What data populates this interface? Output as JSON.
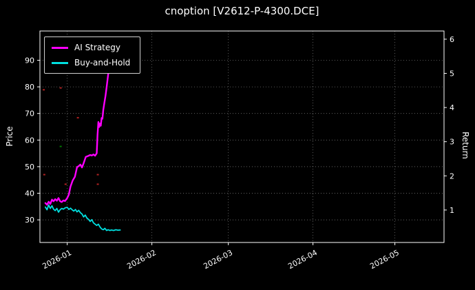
{
  "title": "cnoption [V2612-P-4300.DCE]",
  "chart_data": {
    "type": "line",
    "title": "cnoption [V2612-P-4300.DCE]",
    "x_axis": {
      "range_days": [
        0,
        148
      ],
      "tick_days": [
        10,
        41,
        69,
        100,
        130
      ],
      "tick_labels": [
        "2026-01",
        "2026-02",
        "2026-03",
        "2026-04",
        "2026-05"
      ]
    },
    "y_left": {
      "label": "Price",
      "ticks": [
        30,
        40,
        50,
        60,
        70,
        80,
        90
      ],
      "range": [
        21.5,
        101
      ]
    },
    "y_right": {
      "label": "Return",
      "ticks": [
        1,
        2,
        3,
        4,
        5,
        6
      ],
      "range": [
        0.05,
        6.24
      ]
    },
    "legend": [
      {
        "name": "AI Strategy",
        "color": "#ff00ff"
      },
      {
        "name": "Buy-and-Hold",
        "color": "#00e0e0"
      }
    ],
    "grid": {
      "color": "rgba(255,255,255,0.45)",
      "dash": "1 3"
    },
    "colors": {
      "background": "#000000",
      "text": "#ffffff",
      "spine": "#ffffff"
    },
    "series": [
      {
        "name": "AI Strategy",
        "color": "#ff00ff",
        "width": 2.4,
        "points": [
          [
            2,
            36.3
          ],
          [
            2.6,
            35.7
          ],
          [
            3.2,
            36.8
          ],
          [
            3.8,
            36.0
          ],
          [
            4.4,
            37.6
          ],
          [
            5,
            37.0
          ],
          [
            5.6,
            37.8
          ],
          [
            6.2,
            37.2
          ],
          [
            6.8,
            38.2
          ],
          [
            7.4,
            37.0
          ],
          [
            8,
            36.7
          ],
          [
            8.6,
            37.3
          ],
          [
            9.2,
            37.1
          ],
          [
            10,
            38.2
          ],
          [
            10.6,
            39.5
          ],
          [
            11.2,
            42.5
          ],
          [
            12,
            44.8
          ],
          [
            12.8,
            46.2
          ],
          [
            13.6,
            49.8
          ],
          [
            14.2,
            50.2
          ],
          [
            14.8,
            50.8
          ],
          [
            15.4,
            49.7
          ],
          [
            16,
            51.3
          ],
          [
            16.8,
            53.7
          ],
          [
            17.6,
            54.0
          ],
          [
            18.4,
            54.4
          ],
          [
            19,
            54.2
          ],
          [
            19.6,
            54.6
          ],
          [
            20.2,
            54.1
          ],
          [
            20.8,
            55.0
          ],
          [
            21.1,
            62.0
          ],
          [
            21.4,
            66.8
          ],
          [
            21.7,
            64.9
          ],
          [
            22,
            66.2
          ],
          [
            22.3,
            65.4
          ],
          [
            22.6,
            68.3
          ],
          [
            22.9,
            68.0
          ],
          [
            23.2,
            71.3
          ],
          [
            23.6,
            74.0
          ],
          [
            24,
            76.5
          ],
          [
            24.4,
            79.7
          ],
          [
            24.8,
            83.1
          ],
          [
            25.1,
            85.7
          ],
          [
            25.4,
            88.2
          ],
          [
            25.7,
            90.8
          ],
          [
            26,
            92.9
          ]
        ]
      },
      {
        "name": "Buy-and-Hold",
        "color": "#00e0e0",
        "width": 1.8,
        "points": [
          [
            2,
            34.8
          ],
          [
            2.6,
            33.8
          ],
          [
            3.2,
            35.6
          ],
          [
            3.8,
            34.3
          ],
          [
            4.4,
            35.3
          ],
          [
            5,
            34.0
          ],
          [
            5.6,
            33.5
          ],
          [
            6.2,
            34.3
          ],
          [
            6.8,
            32.9
          ],
          [
            7.4,
            33.8
          ],
          [
            8,
            34.3
          ],
          [
            8.6,
            34.0
          ],
          [
            9.2,
            34.5
          ],
          [
            10,
            34.7
          ],
          [
            10.6,
            33.9
          ],
          [
            11.2,
            34.4
          ],
          [
            11.8,
            33.8
          ],
          [
            12.4,
            33.3
          ],
          [
            13,
            33.9
          ],
          [
            13.6,
            33.0
          ],
          [
            14.2,
            33.6
          ],
          [
            14.8,
            32.7
          ],
          [
            15.4,
            32.2
          ],
          [
            16,
            31.1
          ],
          [
            16.6,
            31.8
          ],
          [
            17.2,
            30.7
          ],
          [
            17.8,
            30.2
          ],
          [
            18.4,
            29.4
          ],
          [
            19,
            30.1
          ],
          [
            19.6,
            28.9
          ],
          [
            20.2,
            28.4
          ],
          [
            20.8,
            27.9
          ],
          [
            21.4,
            28.4
          ],
          [
            22,
            27.3
          ],
          [
            22.6,
            26.6
          ],
          [
            23.2,
            26.3
          ],
          [
            23.8,
            26.8
          ],
          [
            24.4,
            26.0
          ],
          [
            25,
            26.3
          ],
          [
            25.6,
            26.0
          ],
          [
            26.2,
            26.2
          ],
          [
            27,
            26.0
          ],
          [
            27.8,
            26.3
          ],
          [
            28.6,
            26.1
          ],
          [
            29.4,
            26.2
          ]
        ]
      }
    ],
    "markers": [
      {
        "day": 1.4,
        "price": 78.9,
        "color": "#b22222"
      },
      {
        "day": 7.6,
        "price": 79.6,
        "color": "#b22222"
      },
      {
        "day": 7.6,
        "price": 57.6,
        "color": "#007700"
      },
      {
        "day": 13.9,
        "price": 68.4,
        "color": "#b22222"
      },
      {
        "day": 1.6,
        "price": 47.0,
        "color": "#b22222"
      },
      {
        "day": 9.4,
        "price": 43.4,
        "color": "#b22222"
      },
      {
        "day": 21.2,
        "price": 47.0,
        "color": "#b22222"
      },
      {
        "day": 21.2,
        "price": 43.4,
        "color": "#b22222"
      }
    ]
  }
}
